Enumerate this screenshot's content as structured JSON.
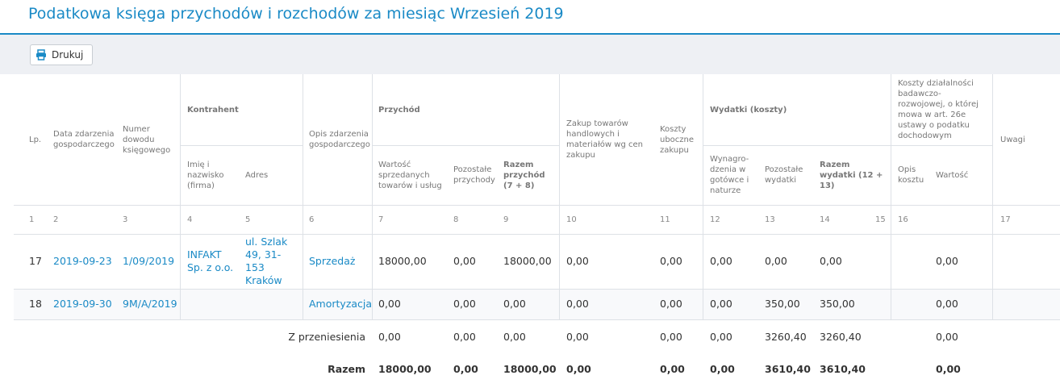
{
  "header": {
    "title": "Podatkowa księga przychodów i rozchodów za miesiąc Wrzesień 2019",
    "print_button": "Drukuj"
  },
  "table": {
    "groups": {
      "contractor": "Kontrahent",
      "income": "Przychód",
      "expenses": "Wydatki (koszty)",
      "rnd": "Koszty działalności badawczo-rozwojowej, o której mowa w art. 26e ustawy o podatku dochodowym"
    },
    "columns": [
      "Lp.",
      "Data zdarzenia gospodarczego",
      "Numer dowodu księgowego",
      "Imię i nazwisko (firma)",
      "Adres",
      "Opis zdarzenia gospodarczego",
      "Wartość sprzedanych towarów i usług",
      "Pozostałe przychody",
      "Razem przychód (7 + 8)",
      "Zakup towarów handlowych i materiałów wg cen zakupu",
      "Koszty uboczne zakupu",
      "Wynagro-dzenia w gotówce i naturze",
      "Pozostałe wydatki",
      "Razem wydatki (12 + 13)",
      "Opis kosztu",
      "Wartość",
      "Uwagi"
    ],
    "column_numbers": [
      "1",
      "2",
      "3",
      "4",
      "5",
      "6",
      "7",
      "8",
      "9",
      "10",
      "11",
      "12",
      "13",
      "14",
      "15",
      "16",
      "17"
    ],
    "rows": [
      {
        "lp": "17",
        "date": "2019-09-23",
        "document": "1/09/2019",
        "name": "INFAKT Sp. z o.o.",
        "address": "ul. Szlak 49, 31-153 Kraków",
        "description": "Sprzedaż",
        "sales": "18000,00",
        "other_income": "0,00",
        "total_income": "18000,00",
        "purchases": "0,00",
        "side_costs": "0,00",
        "salaries": "0,00",
        "other_expenses": "0,00",
        "total_expenses": "0,00",
        "rnd_value": "0,00"
      },
      {
        "lp": "18",
        "date": "2019-09-30",
        "document": "9M/A/2019",
        "description": "Amortyzacja",
        "sales": "0,00",
        "other_income": "0,00",
        "total_income": "0,00",
        "purchases": "0,00",
        "side_costs": "0,00",
        "salaries": "0,00",
        "other_expenses": "350,00",
        "total_expenses": "350,00",
        "rnd_value": "0,00"
      }
    ],
    "summary": [
      {
        "label": "Z przeniesienia",
        "values": {
          "sales": "0,00",
          "other_income": "0,00",
          "total_income": "0,00",
          "purchases": "0,00",
          "side_costs": "0,00",
          "salaries": "0,00",
          "other_expenses": "3260,40",
          "total_expenses": "3260,40",
          "rnd_value": "0,00"
        }
      },
      {
        "label": "Razem",
        "values": {
          "sales": "18000,00",
          "other_income": "0,00",
          "total_income": "18000,00",
          "purchases": "0,00",
          "side_costs": "0,00",
          "salaries": "0,00",
          "other_expenses": "3610,40",
          "total_expenses": "3610,40",
          "rnd_value": "0,00"
        }
      }
    ]
  }
}
